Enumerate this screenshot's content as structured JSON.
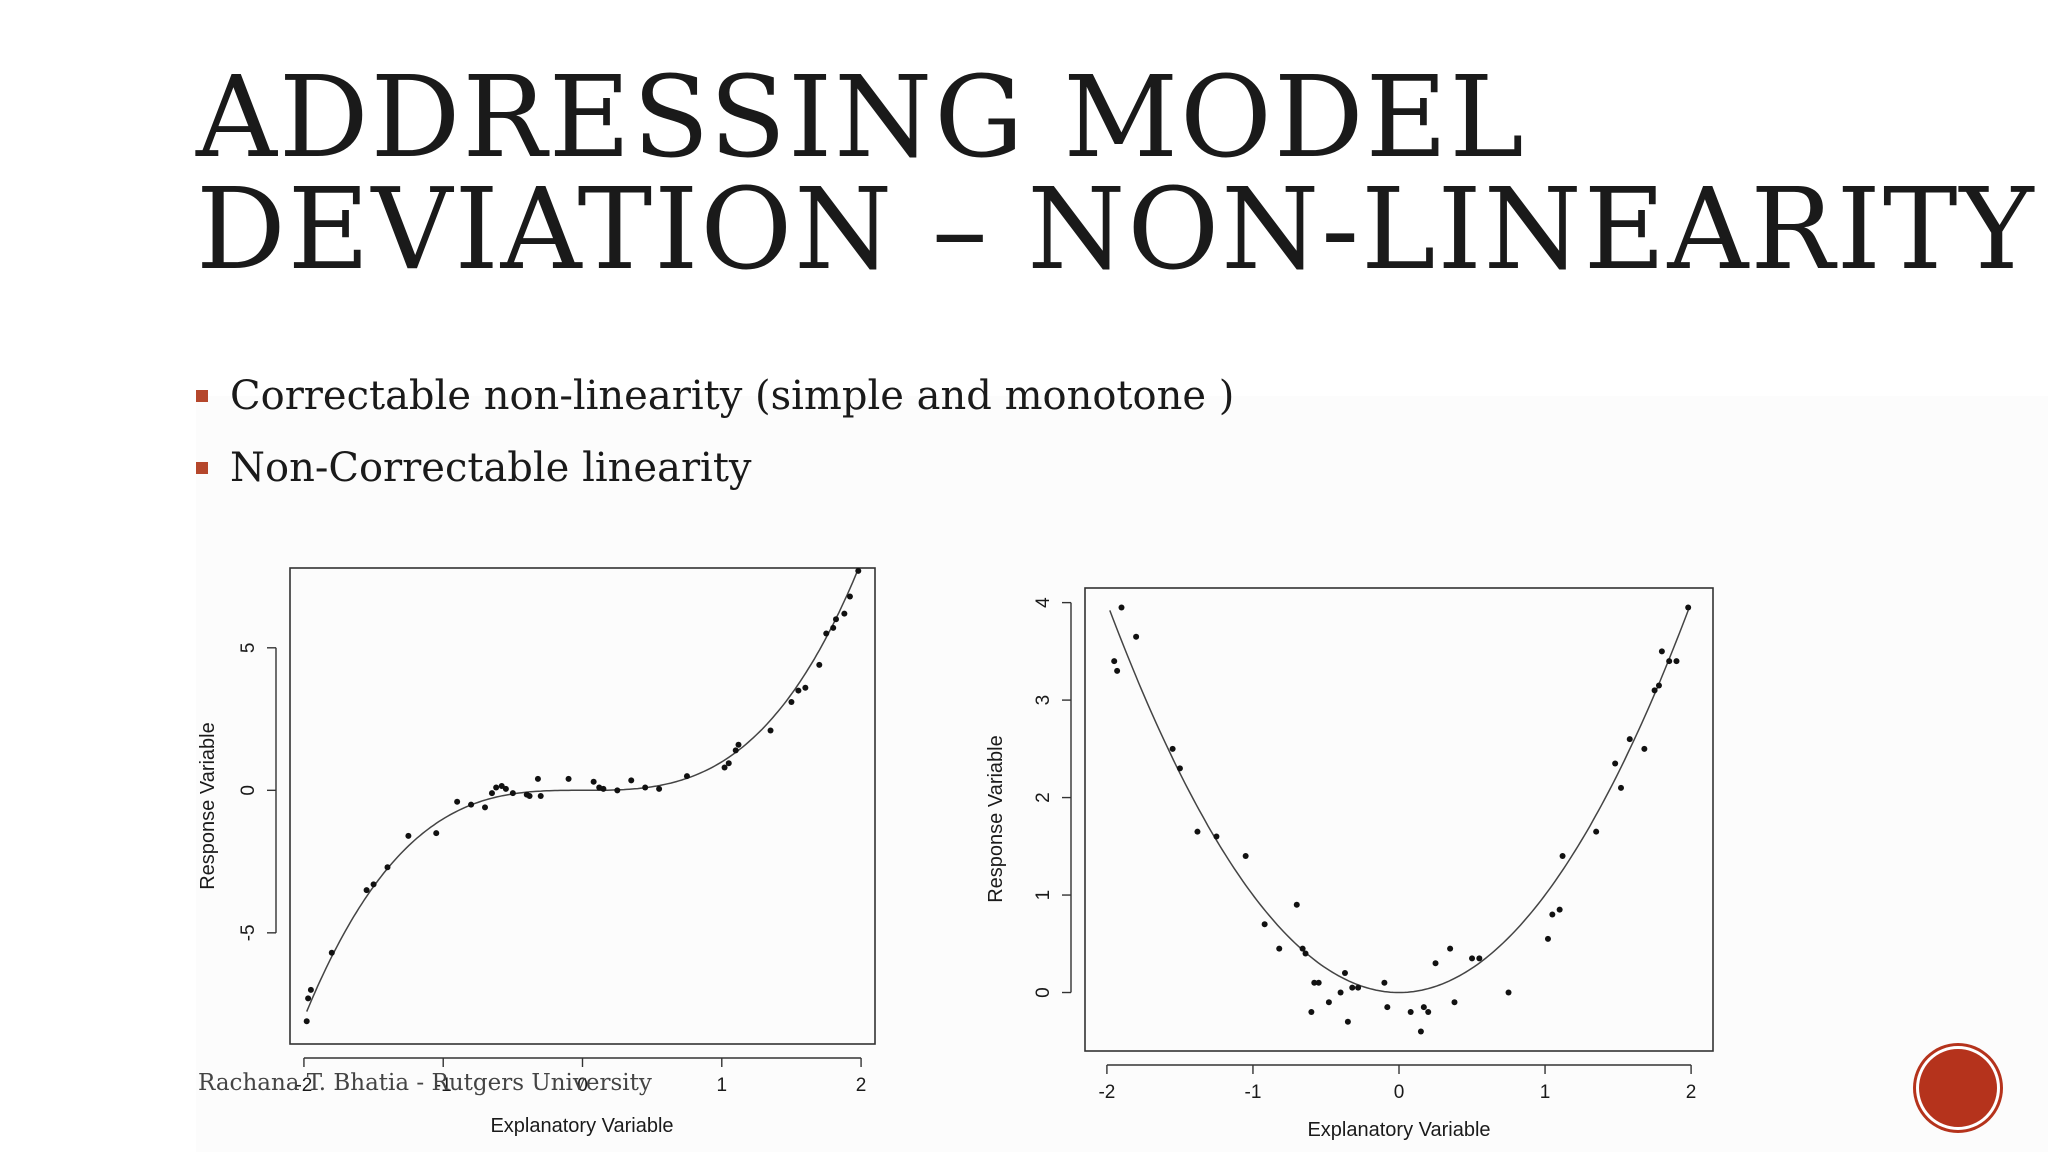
{
  "title": {
    "line1": "ADDRESSING MODEL",
    "line2": "DEVIATION – NON-LINEARITY"
  },
  "bullets": [
    "Correctable non-linearity (simple and monotone )",
    "Non-Correctable linearity"
  ],
  "footer": "Rachana T. Bhatia - Rutgers University",
  "colors": {
    "accent": "#b5472c",
    "nav_button": "#b5331c",
    "text": "#1a1a1a"
  },
  "icons": {
    "nav": "circle-button-icon"
  },
  "chart_data": [
    {
      "type": "scatter",
      "title": "",
      "xlabel": "Explanatory Variable",
      "ylabel": "Response Variable",
      "xlim": [
        -2.1,
        2.1
      ],
      "ylim": [
        -8.9,
        7.8
      ],
      "xticks": [
        -2,
        -1,
        0,
        1,
        2
      ],
      "yticks": [
        -5,
        0,
        5
      ],
      "xticklabels": [
        "-2",
        "-1",
        "0",
        "1",
        "2"
      ],
      "yticklabels": [
        "-5",
        "0",
        "5"
      ],
      "grid": false,
      "fit_curve": "cubic",
      "points": [
        [
          -1.98,
          -8.1
        ],
        [
          -1.97,
          -7.3
        ],
        [
          -1.95,
          -7.0
        ],
        [
          -1.8,
          -5.7
        ],
        [
          -1.55,
          -3.5
        ],
        [
          -1.5,
          -3.3
        ],
        [
          -1.4,
          -2.7
        ],
        [
          -1.25,
          -1.6
        ],
        [
          -1.05,
          -1.5
        ],
        [
          -0.9,
          -0.4
        ],
        [
          -0.8,
          -0.5
        ],
        [
          -0.7,
          -0.6
        ],
        [
          -0.65,
          -0.1
        ],
        [
          -0.62,
          0.1
        ],
        [
          -0.58,
          0.15
        ],
        [
          -0.55,
          0.05
        ],
        [
          -0.5,
          -0.1
        ],
        [
          -0.4,
          -0.15
        ],
        [
          -0.38,
          -0.2
        ],
        [
          -0.32,
          0.4
        ],
        [
          -0.3,
          -0.2
        ],
        [
          -0.1,
          0.4
        ],
        [
          0.08,
          0.3
        ],
        [
          0.12,
          0.1
        ],
        [
          0.15,
          0.05
        ],
        [
          0.25,
          0.0
        ],
        [
          0.35,
          0.35
        ],
        [
          0.45,
          0.1
        ],
        [
          0.55,
          0.05
        ],
        [
          0.75,
          0.5
        ],
        [
          1.02,
          0.8
        ],
        [
          1.05,
          0.95
        ],
        [
          1.1,
          1.4
        ],
        [
          1.12,
          1.6
        ],
        [
          1.35,
          2.1
        ],
        [
          1.5,
          3.1
        ],
        [
          1.55,
          3.5
        ],
        [
          1.6,
          3.6
        ],
        [
          1.7,
          4.4
        ],
        [
          1.75,
          5.5
        ],
        [
          1.8,
          5.7
        ],
        [
          1.82,
          6.0
        ],
        [
          1.88,
          6.2
        ],
        [
          1.92,
          6.8
        ],
        [
          1.98,
          7.7
        ]
      ]
    },
    {
      "type": "scatter",
      "title": "",
      "xlabel": "Explanatory Variable",
      "ylabel": "Response Variable",
      "xlim": [
        -2.15,
        2.15
      ],
      "ylim": [
        -0.6,
        4.15
      ],
      "xticks": [
        -2,
        -1,
        0,
        1,
        2
      ],
      "yticks": [
        0,
        1,
        2,
        3,
        4
      ],
      "xticklabels": [
        "-2",
        "-1",
        "0",
        "1",
        "2"
      ],
      "yticklabels": [
        "0",
        "1",
        "2",
        "3",
        "4"
      ],
      "grid": false,
      "fit_curve": "quadratic",
      "points": [
        [
          -1.95,
          3.4
        ],
        [
          -1.93,
          3.3
        ],
        [
          -1.9,
          3.95
        ],
        [
          -1.8,
          3.65
        ],
        [
          -1.55,
          2.5
        ],
        [
          -1.5,
          2.3
        ],
        [
          -1.38,
          1.65
        ],
        [
          -1.25,
          1.6
        ],
        [
          -1.05,
          1.4
        ],
        [
          -0.92,
          0.7
        ],
        [
          -0.82,
          0.45
        ],
        [
          -0.7,
          0.9
        ],
        [
          -0.66,
          0.45
        ],
        [
          -0.64,
          0.4
        ],
        [
          -0.6,
          -0.2
        ],
        [
          -0.58,
          0.1
        ],
        [
          -0.55,
          0.1
        ],
        [
          -0.48,
          -0.1
        ],
        [
          -0.4,
          0.0
        ],
        [
          -0.37,
          0.2
        ],
        [
          -0.35,
          -0.3
        ],
        [
          -0.32,
          0.05
        ],
        [
          -0.28,
          0.05
        ],
        [
          -0.1,
          0.1
        ],
        [
          -0.08,
          -0.15
        ],
        [
          0.08,
          -0.2
        ],
        [
          0.15,
          -0.4
        ],
        [
          0.17,
          -0.15
        ],
        [
          0.2,
          -0.2
        ],
        [
          0.25,
          0.3
        ],
        [
          0.35,
          0.45
        ],
        [
          0.38,
          -0.1
        ],
        [
          0.5,
          0.35
        ],
        [
          0.55,
          0.35
        ],
        [
          0.75,
          0.0
        ],
        [
          1.02,
          0.55
        ],
        [
          1.05,
          0.8
        ],
        [
          1.1,
          0.85
        ],
        [
          1.12,
          1.4
        ],
        [
          1.35,
          1.65
        ],
        [
          1.48,
          2.35
        ],
        [
          1.52,
          2.1
        ],
        [
          1.58,
          2.6
        ],
        [
          1.68,
          2.5
        ],
        [
          1.75,
          3.1
        ],
        [
          1.78,
          3.15
        ],
        [
          1.8,
          3.5
        ],
        [
          1.85,
          3.4
        ],
        [
          1.9,
          3.4
        ],
        [
          1.98,
          3.95
        ]
      ]
    }
  ]
}
